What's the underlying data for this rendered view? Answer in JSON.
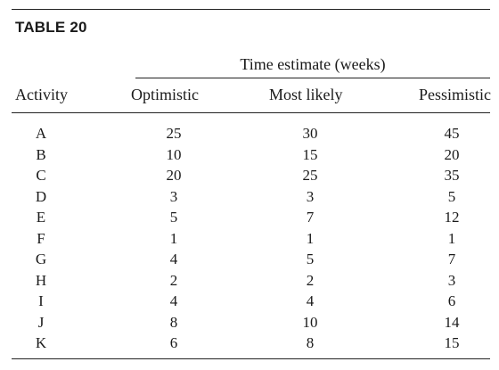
{
  "table": {
    "label": "TABLE 20",
    "group_header": "Time estimate (weeks)",
    "columns": [
      "Activity",
      "Optimistic",
      "Most likely",
      "Pessimistic"
    ],
    "rows": [
      {
        "activity": "A",
        "optimistic": "25",
        "most_likely": "30",
        "pessimistic": "45"
      },
      {
        "activity": "B",
        "optimistic": "10",
        "most_likely": "15",
        "pessimistic": "20"
      },
      {
        "activity": "C",
        "optimistic": "20",
        "most_likely": "25",
        "pessimistic": "35"
      },
      {
        "activity": "D",
        "optimistic": "3",
        "most_likely": "3",
        "pessimistic": "5"
      },
      {
        "activity": "E",
        "optimistic": "5",
        "most_likely": "7",
        "pessimistic": "12"
      },
      {
        "activity": "F",
        "optimistic": "1",
        "most_likely": "1",
        "pessimistic": "1"
      },
      {
        "activity": "G",
        "optimistic": "4",
        "most_likely": "5",
        "pessimistic": "7"
      },
      {
        "activity": "H",
        "optimistic": "2",
        "most_likely": "2",
        "pessimistic": "3"
      },
      {
        "activity": "I",
        "optimistic": "4",
        "most_likely": "4",
        "pessimistic": "6"
      },
      {
        "activity": "J",
        "optimistic": "8",
        "most_likely": "10",
        "pessimistic": "14"
      },
      {
        "activity": "K",
        "optimistic": "6",
        "most_likely": "8",
        "pessimistic": "15"
      }
    ]
  }
}
